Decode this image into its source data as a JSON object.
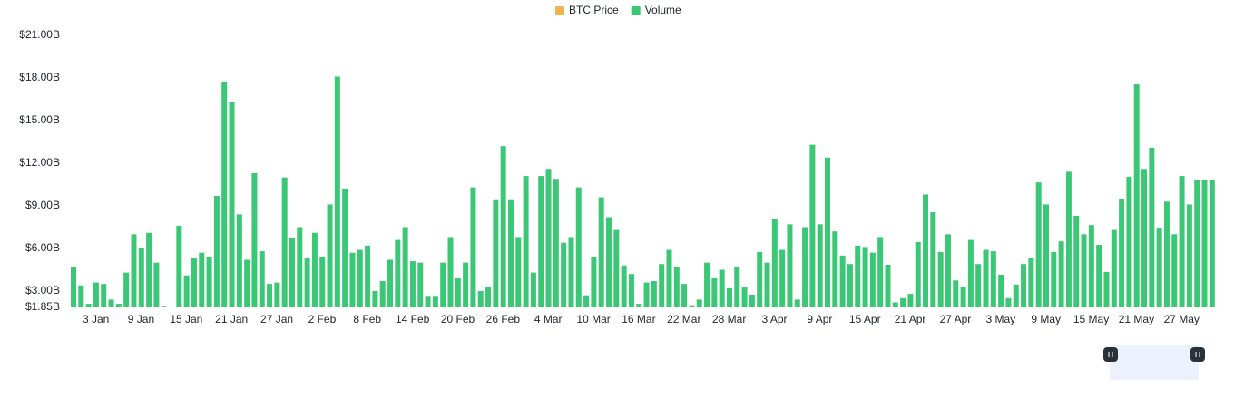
{
  "chart_data": {
    "type": "bar",
    "series": [
      {
        "name": "BTC Price",
        "color": "#f0b44c",
        "visible": false
      },
      {
        "name": "Volume",
        "color": "#3cc776",
        "visible": true,
        "values": [
          4.7,
          3.4,
          2.1,
          3.6,
          3.5,
          2.4,
          2.1,
          4.3,
          7.0,
          6.0,
          7.1,
          5.0,
          1.9,
          null,
          7.6,
          4.1,
          5.3,
          5.7,
          5.4,
          9.7,
          17.75,
          16.3,
          8.4,
          5.2,
          11.3,
          5.8,
          3.5,
          3.6,
          11.0,
          6.7,
          7.5,
          5.3,
          7.1,
          5.4,
          9.1,
          18.1,
          10.2,
          5.7,
          5.9,
          6.2,
          3.0,
          3.7,
          5.2,
          6.6,
          7.5,
          5.1,
          5.0,
          2.6,
          2.6,
          5.0,
          6.8,
          3.9,
          5.0,
          10.3,
          3.0,
          3.3,
          9.4,
          13.2,
          9.4,
          6.8,
          11.1,
          4.3,
          11.1,
          11.6,
          10.9,
          6.4,
          6.8,
          10.3,
          2.7,
          5.4,
          9.6,
          8.2,
          7.3,
          4.8,
          4.2,
          2.1,
          3.6,
          3.7,
          4.9,
          5.9,
          4.7,
          3.5,
          2.0,
          2.4,
          5.0,
          3.9,
          4.5,
          3.2,
          4.7,
          3.25,
          2.75,
          5.75,
          5.0,
          8.1,
          5.9,
          7.7,
          2.4,
          7.5,
          13.3,
          7.7,
          12.4,
          7.2,
          5.5,
          4.9,
          6.2,
          6.1,
          5.7,
          6.8,
          4.85,
          2.2,
          2.5,
          2.8,
          6.45,
          9.8,
          8.55,
          5.75,
          7.0,
          3.75,
          3.3,
          6.6,
          4.9,
          5.9,
          5.8,
          4.15,
          2.5,
          3.45,
          4.9,
          5.3,
          10.65,
          9.1,
          5.75,
          6.5,
          11.4,
          8.3,
          7.0,
          7.65,
          6.25,
          4.35,
          7.3,
          9.5,
          11.05,
          17.55,
          11.6,
          13.1,
          7.4,
          9.3,
          7.0,
          11.1,
          9.1,
          10.85,
          10.85,
          10.85
        ]
      }
    ],
    "categories": [
      null,
      null,
      "3 Jan",
      null,
      null,
      null,
      null,
      null,
      "9 Jan",
      null,
      null,
      null,
      null,
      null,
      "15 Jan",
      null,
      null,
      null,
      null,
      null,
      "21 Jan",
      null,
      null,
      null,
      null,
      null,
      "27 Jan",
      null,
      null,
      null,
      null,
      null,
      "2 Feb",
      null,
      null,
      null,
      null,
      null,
      "8 Feb",
      null,
      null,
      null,
      null,
      null,
      "14 Feb",
      null,
      null,
      null,
      null,
      null,
      "20 Feb",
      null,
      null,
      null,
      null,
      null,
      "26 Feb",
      null,
      null,
      null,
      null,
      null,
      "4 Mar",
      null,
      null,
      null,
      null,
      null,
      "10 Mar",
      null,
      null,
      null,
      null,
      null,
      "16 Mar",
      null,
      null,
      null,
      null,
      null,
      "22 Mar",
      null,
      null,
      null,
      null,
      null,
      "28 Mar",
      null,
      null,
      null,
      null,
      null,
      "3 Apr",
      null,
      null,
      null,
      null,
      null,
      "9 Apr",
      null,
      null,
      null,
      null,
      null,
      "15 Apr",
      null,
      null,
      null,
      null,
      null,
      "21 Apr",
      null,
      null,
      null,
      null,
      null,
      "27 Apr",
      null,
      null,
      null,
      null,
      null,
      "3 May",
      null,
      null,
      null,
      null,
      null,
      "9 May",
      null,
      null,
      null,
      null,
      null,
      "15 May",
      null,
      null,
      null,
      null,
      null,
      "21 May",
      null,
      null,
      null,
      null,
      null,
      "27 May",
      null,
      null,
      null,
      null,
      null
    ],
    "ylim": [
      1.85,
      21
    ],
    "yticks": [
      {
        "value": 1.85,
        "label": "$1.85B"
      },
      {
        "value": 3,
        "label": "$3.00B"
      },
      {
        "value": 6,
        "label": "$6.00B"
      },
      {
        "value": 9,
        "label": "$9.00B"
      },
      {
        "value": 12,
        "label": "$12.00B"
      },
      {
        "value": 15,
        "label": "$15.00B"
      },
      {
        "value": 18,
        "label": "$18.00B"
      },
      {
        "value": 21,
        "label": "$21.00B"
      }
    ],
    "grid": false
  }
}
